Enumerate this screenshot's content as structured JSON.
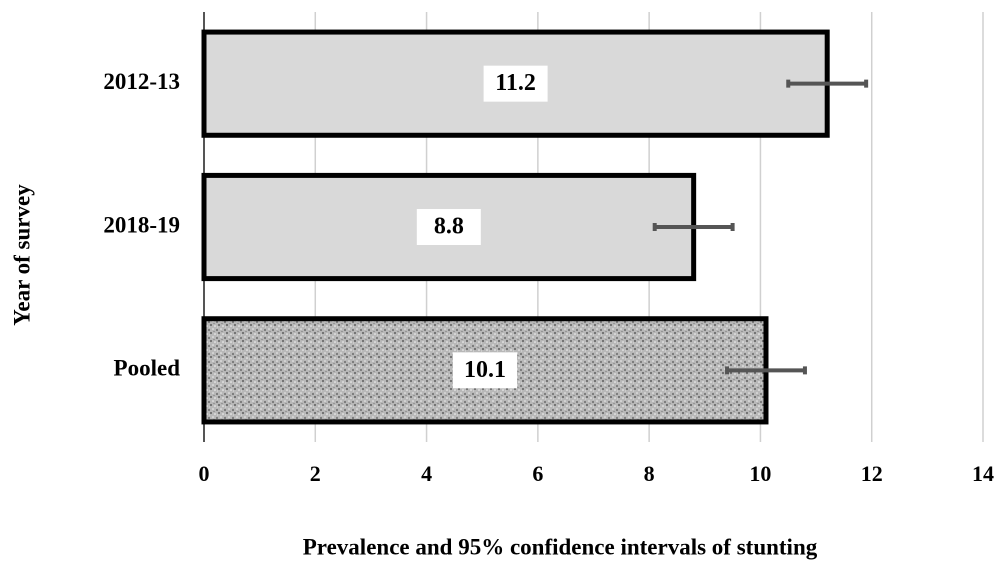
{
  "chart_data": {
    "type": "bar",
    "orientation": "horizontal",
    "categories": [
      "2012-13",
      "2018-19",
      "Pooled"
    ],
    "values": [
      11.2,
      8.8,
      10.1
    ],
    "ci_lower": [
      10.5,
      8.1,
      9.4
    ],
    "ci_upper": [
      11.9,
      9.5,
      10.8
    ],
    "color": "#d9d9d9",
    "bar_styles": [
      "solid",
      "solid",
      "speckled"
    ],
    "xlim": [
      0,
      14
    ],
    "xticks": [
      0,
      2,
      4,
      6,
      8,
      10,
      12,
      14
    ],
    "grid": true,
    "x_label": "Prevalence and 95% confidence intervals of stunting",
    "y_label": "Year of survey"
  }
}
